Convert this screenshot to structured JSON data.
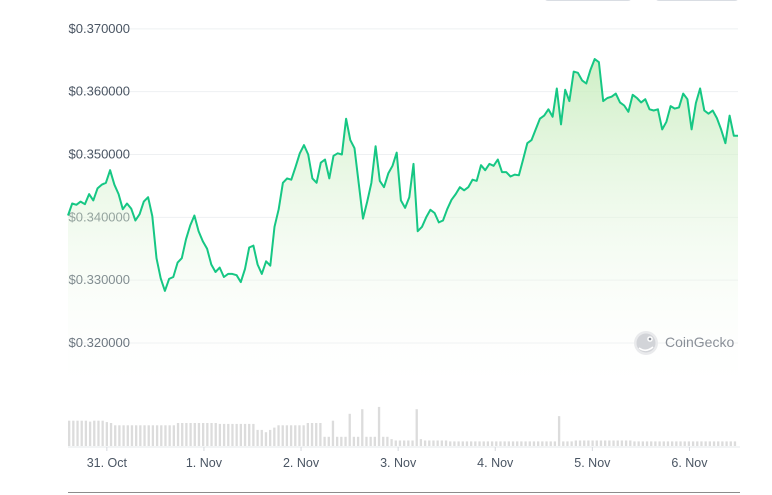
{
  "chart_data": {
    "type": "area",
    "ylim": [
      0.313,
      0.373
    ],
    "y_ticks": [
      "$0.370000",
      "$0.360000",
      "$0.350000",
      "$0.340000",
      "$0.330000",
      "$0.320000"
    ],
    "y_tick_values": [
      0.37,
      0.36,
      0.35,
      0.34,
      0.33,
      0.32
    ],
    "x_ticks": [
      "31. Oct",
      "1. Nov",
      "2. Nov",
      "3. Nov",
      "4. Nov",
      "5. Nov",
      "6. Nov"
    ],
    "x_tick_positions": [
      0.5,
      1.5,
      2.5,
      3.5,
      4.5,
      5.5,
      6.5
    ],
    "x_range": [
      0.1,
      7.0
    ],
    "grid": true,
    "series": [
      {
        "price": [
          0.3403,
          0.3422,
          0.342,
          0.3425,
          0.3421,
          0.3437,
          0.3427,
          0.3446,
          0.3452,
          0.3455,
          0.3475,
          0.3452,
          0.3437,
          0.3413,
          0.3422,
          0.3414,
          0.3395,
          0.3405,
          0.3425,
          0.3432,
          0.3402,
          0.3335,
          0.3303,
          0.3283,
          0.3302,
          0.3305,
          0.3328,
          0.3335,
          0.3365,
          0.3387,
          0.3403,
          0.3378,
          0.3362,
          0.335,
          0.3325,
          0.3313,
          0.332,
          0.3305,
          0.331,
          0.331,
          0.3308,
          0.3297,
          0.3318,
          0.3352,
          0.3355,
          0.3325,
          0.331,
          0.333,
          0.3323,
          0.3385,
          0.3413,
          0.3455,
          0.3462,
          0.346,
          0.348,
          0.3502,
          0.3515,
          0.35,
          0.3462,
          0.3455,
          0.3487,
          0.3492,
          0.3462,
          0.3498,
          0.3502,
          0.35,
          0.3557,
          0.3523,
          0.351,
          0.3453,
          0.3398,
          0.3425,
          0.3455,
          0.3513,
          0.3458,
          0.3448,
          0.347,
          0.3482,
          0.3503,
          0.3427,
          0.3415,
          0.3432,
          0.3485,
          0.3378,
          0.3385,
          0.34,
          0.3412,
          0.3407,
          0.3392,
          0.3395,
          0.3413,
          0.3428,
          0.3437,
          0.3448,
          0.3443,
          0.3448,
          0.346,
          0.3458,
          0.3483,
          0.3475,
          0.3485,
          0.3482,
          0.3492,
          0.3472,
          0.3472,
          0.3465,
          0.3468,
          0.3467,
          0.3492,
          0.3518,
          0.3523,
          0.354,
          0.3557,
          0.3562,
          0.3572,
          0.356,
          0.3605,
          0.3548,
          0.3603,
          0.3585,
          0.3632,
          0.363,
          0.3618,
          0.3613,
          0.3635,
          0.3652,
          0.3647,
          0.3585,
          0.359,
          0.3592,
          0.3597,
          0.3583,
          0.3578,
          0.3568,
          0.3595,
          0.359,
          0.3583,
          0.3588,
          0.3572,
          0.357,
          0.3572,
          0.354,
          0.3552,
          0.3577,
          0.3573,
          0.3575,
          0.3597,
          0.3588,
          0.354,
          0.3582,
          0.3605,
          0.357,
          0.3565,
          0.357,
          0.3558,
          0.354,
          0.3518,
          0.3562,
          0.353,
          0.353
        ],
        "volume": [
          0.55,
          0.55,
          0.55,
          0.55,
          0.55,
          0.53,
          0.55,
          0.55,
          0.55,
          0.52,
          0.5,
          0.45,
          0.45,
          0.45,
          0.45,
          0.45,
          0.45,
          0.45,
          0.45,
          0.45,
          0.45,
          0.45,
          0.45,
          0.45,
          0.45,
          0.45,
          0.5,
          0.5,
          0.5,
          0.5,
          0.5,
          0.5,
          0.5,
          0.5,
          0.5,
          0.5,
          0.48,
          0.48,
          0.48,
          0.48,
          0.48,
          0.48,
          0.48,
          0.48,
          0.48,
          0.35,
          0.35,
          0.3,
          0.35,
          0.4,
          0.45,
          0.45,
          0.45,
          0.45,
          0.45,
          0.45,
          0.45,
          0.5,
          0.5,
          0.5,
          0.5,
          0.2,
          0.2,
          0.55,
          0.2,
          0.2,
          0.2,
          0.7,
          0.2,
          0.2,
          0.8,
          0.2,
          0.2,
          0.2,
          0.85,
          0.2,
          0.2,
          0.15,
          0.12,
          0.12,
          0.12,
          0.12,
          0.12,
          0.8,
          0.15,
          0.12,
          0.12,
          0.12,
          0.12,
          0.12,
          0.12,
          0.1,
          0.1,
          0.1,
          0.1,
          0.1,
          0.1,
          0.1,
          0.1,
          0.1,
          0.1,
          0.1,
          0.1,
          0.1,
          0.1,
          0.1,
          0.1,
          0.1,
          0.1,
          0.1,
          0.1,
          0.1,
          0.1,
          0.1,
          0.1,
          0.1,
          0.1,
          0.65,
          0.1,
          0.1,
          0.1,
          0.12,
          0.12,
          0.12,
          0.12,
          0.12,
          0.12,
          0.12,
          0.12,
          0.12,
          0.12,
          0.12,
          0.12,
          0.12,
          0.12,
          0.1,
          0.1,
          0.1,
          0.1,
          0.1,
          0.1,
          0.1,
          0.1,
          0.1,
          0.1,
          0.1,
          0.1,
          0.1,
          0.1,
          0.1,
          0.1,
          0.1,
          0.1,
          0.1,
          0.1,
          0.1,
          0.1,
          0.1,
          0.1,
          0.1
        ]
      }
    ],
    "line_color": "#16c784",
    "fill_color": "#bfe9b4",
    "volume_color": "#dcdcdc"
  },
  "watermark": {
    "text": "CoinGecko",
    "icon": "coingecko-gecko-icon"
  }
}
